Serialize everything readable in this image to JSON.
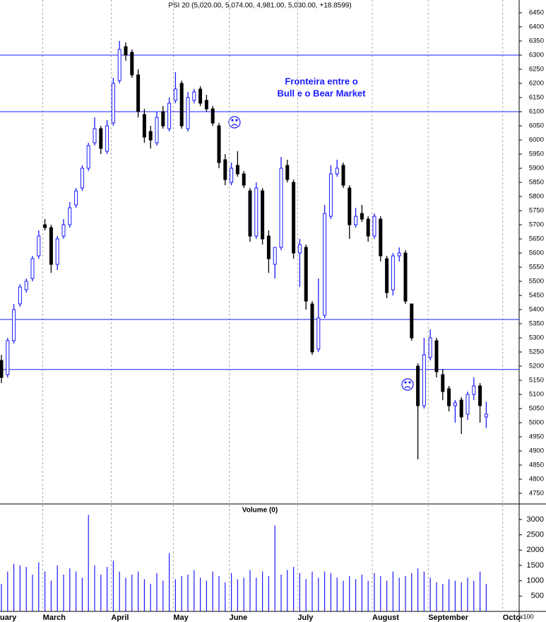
{
  "chart_data": [
    {
      "type": "candlestick",
      "title": "PSI 20 (5,020.00, 5,074.00, 4,981.00, 5,030.00, +18.8599)",
      "annotation": [
        "Fronteira entre o",
        "Bull e o Bear Market"
      ],
      "categories": [
        "uary",
        null,
        null,
        null,
        null,
        null,
        null,
        "March",
        null,
        null,
        null,
        null,
        null,
        null,
        null,
        null,
        null,
        null,
        "April",
        null,
        null,
        null,
        null,
        null,
        null,
        null,
        null,
        null,
        "May",
        null,
        null,
        null,
        null,
        null,
        null,
        null,
        null,
        "June",
        null,
        null,
        null,
        null,
        null,
        null,
        null,
        null,
        null,
        null,
        "July",
        null,
        null,
        null,
        null,
        null,
        null,
        null,
        null,
        null,
        null,
        null,
        "August",
        null,
        null,
        null,
        null,
        null,
        null,
        null,
        null,
        "September",
        null,
        null,
        null,
        null,
        null,
        null,
        null,
        null,
        null,
        null,
        null,
        "Octo"
      ],
      "open": [
        5220,
        5170,
        5290,
        5420,
        5470,
        5510,
        5590,
        5700,
        5690,
        5560,
        5660,
        5700,
        5770,
        5830,
        5900,
        5990,
        6040,
        5960,
        6060,
        6210,
        6330,
        6310,
        6230,
        6090,
        6030,
        5990,
        6100,
        6040,
        6140,
        6200,
        6040,
        6140,
        6180,
        6140,
        6110,
        6050,
        5930,
        5850,
        5910,
        5880,
        5820,
        5660,
        5820,
        5660,
        5560,
        5620,
        5910,
        5850,
        5600,
        5620,
        5420,
        5260,
        5380,
        5730,
        5880,
        5910,
        5830,
        5700,
        5740,
        5720,
        5660,
        5720,
        5580,
        5470,
        5590,
        5600,
        5420,
        5200,
        5060,
        5230,
        5290,
        5170,
        5120,
        5060,
        5080,
        5030,
        5100,
        5130,
        5020,
        null,
        null,
        null
      ],
      "high": [
        5240,
        5300,
        5420,
        5490,
        5510,
        5590,
        5680,
        5720,
        5700,
        5660,
        5720,
        5780,
        5830,
        5910,
        5990,
        6080,
        6050,
        6070,
        6220,
        6350,
        6345,
        6320,
        6250,
        6110,
        6050,
        6100,
        6120,
        6150,
        6240,
        6210,
        6170,
        6180,
        6190,
        6160,
        6120,
        6060,
        5950,
        5920,
        5960,
        5890,
        5830,
        5850,
        5830,
        5680,
        5620,
        5940,
        5930,
        5860,
        5650,
        5630,
        5430,
        5510,
        5770,
        5910,
        5930,
        5920,
        5840,
        5760,
        5770,
        5730,
        5740,
        5730,
        5590,
        5600,
        5620,
        5610,
        5420,
        5210,
        5300,
        5330,
        5300,
        5190,
        5130,
        5080,
        5090,
        5110,
        5160,
        5140,
        5074,
        null,
        null,
        null
      ],
      "low": [
        5140,
        5160,
        5280,
        5410,
        5460,
        5500,
        5580,
        5680,
        5530,
        5540,
        5650,
        5690,
        5760,
        5820,
        5890,
        5980,
        5950,
        5950,
        6050,
        6200,
        6280,
        6220,
        6080,
        5990,
        5970,
        5980,
        6040,
        6030,
        6130,
        6040,
        6030,
        6130,
        6120,
        6100,
        6050,
        5900,
        5840,
        5840,
        5870,
        5830,
        5640,
        5650,
        5630,
        5530,
        5510,
        5610,
        5850,
        5580,
        5480,
        5400,
        5240,
        5250,
        5370,
        5720,
        5870,
        5830,
        5650,
        5690,
        5710,
        5640,
        5650,
        5570,
        5440,
        5450,
        5570,
        5420,
        5290,
        4870,
        5050,
        5220,
        5160,
        5080,
        5040,
        5000,
        4960,
        5010,
        5080,
        5000,
        4981,
        null,
        null,
        null
      ],
      "close": [
        5160,
        5290,
        5400,
        5480,
        5500,
        5580,
        5660,
        5690,
        5560,
        5650,
        5700,
        5760,
        5820,
        5900,
        5980,
        6040,
        5970,
        6050,
        6200,
        6320,
        6300,
        6230,
        6100,
        6010,
        6000,
        6080,
        6050,
        6130,
        6180,
        6050,
        6150,
        6170,
        6130,
        6110,
        6060,
        5920,
        5860,
        5900,
        5880,
        5840,
        5660,
        5830,
        5650,
        5580,
        5620,
        5900,
        5860,
        5600,
        5630,
        5430,
        5250,
        5370,
        5740,
        5880,
        5900,
        5840,
        5700,
        5730,
        5720,
        5660,
        5730,
        5590,
        5460,
        5590,
        5600,
        5430,
        5300,
        5060,
        5240,
        5300,
        5180,
        5110,
        5060,
        5070,
        5020,
        5100,
        5130,
        5060,
        5030,
        null,
        null,
        null
      ],
      "up_color": "#ffffff",
      "down_color": "#000000",
      "outline_color": "#1a1aff",
      "hlines": [
        6300,
        6100,
        5365,
        5188
      ],
      "hline_color": "#1a1aff",
      "ylim": [
        4712.5,
        6495
      ],
      "yticks": [
        4750,
        4800,
        4850,
        4900,
        4950,
        5000,
        5050,
        5100,
        5150,
        5200,
        5250,
        5300,
        5350,
        5400,
        5450,
        5500,
        5550,
        5600,
        5650,
        5700,
        5750,
        5800,
        5850,
        5900,
        5950,
        6000,
        6050,
        6100,
        6150,
        6200,
        6250,
        6300,
        6350,
        6400,
        6450
      ],
      "grid": true
    },
    {
      "type": "bar",
      "title": "Volume (0)",
      "unit_label": "x100",
      "color": "#1a1aff",
      "values": [
        900,
        1300,
        1550,
        1500,
        1450,
        1200,
        1600,
        1300,
        1000,
        1500,
        1200,
        1400,
        1300,
        1100,
        3150,
        1500,
        1200,
        1450,
        1650,
        1300,
        1100,
        1200,
        1300,
        1050,
        900,
        1250,
        1000,
        1900,
        1050,
        1150,
        1200,
        1350,
        1100,
        1000,
        1300,
        1150,
        950,
        1250,
        1050,
        1100,
        1350,
        1100,
        1300,
        1150,
        2800,
        1200,
        1350,
        1450,
        1250,
        1050,
        1300,
        1100,
        1300,
        1250,
        1100,
        1000,
        1150,
        1050,
        1200,
        1000,
        1250,
        1150,
        1000,
        1300,
        1100,
        1150,
        1250,
        1400,
        1300,
        1100,
        950,
        900,
        1050,
        1000,
        950,
        1100,
        1000,
        1300,
        900,
        null,
        null,
        null
      ],
      "ylim": [
        0,
        3460
      ],
      "yticks": [
        500,
        1000,
        1500,
        2000,
        2500,
        3000
      ]
    }
  ]
}
